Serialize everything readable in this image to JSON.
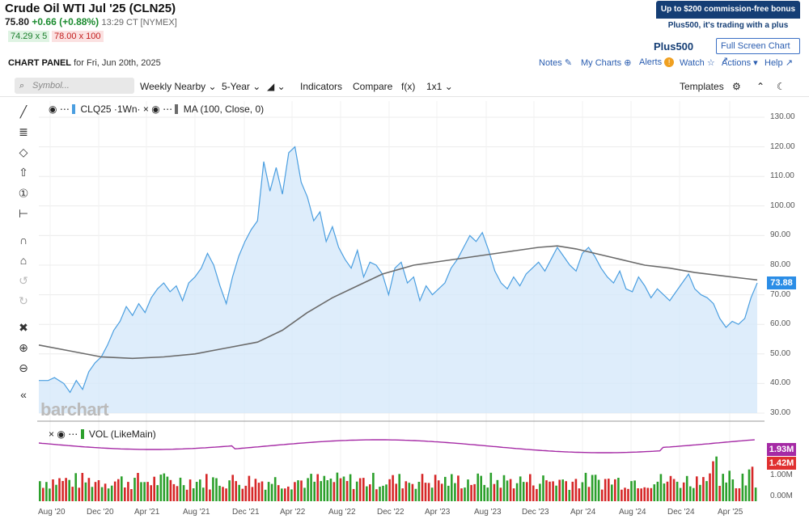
{
  "header": {
    "title": "Crude Oil WTI Jul '25 (CLN25)",
    "last": "75.80",
    "change": "+0.66 (+0.88%)",
    "time": "13:29 CT [NYMEX]",
    "bid": "74.29 x 5",
    "ask": "78.00 x 100"
  },
  "promo": {
    "line1": "Up to $200 commission-free bonus",
    "line2": "Plus500, it's trading with a plus",
    "brand": "Plus500",
    "fullscreen": "Full Screen Chart"
  },
  "panel": {
    "label": "CHART PANEL",
    "date": "for Fri, Jun 20th, 2025"
  },
  "topnav": {
    "notes": "Notes",
    "mycharts": "My Charts",
    "alerts": "Alerts",
    "watch": "Watch",
    "actions": "Actions",
    "help": "Help"
  },
  "toolbar": {
    "search_placeholder": "Symbol...",
    "nearby": "Weekly Nearby",
    "period": "5-Year",
    "indicators": "Indicators",
    "compare": "Compare",
    "fx": "f(x)",
    "layout": "1x1",
    "templates": "Templates"
  },
  "legend": {
    "main": "CLQ25 ·1Wn·",
    "ma": "MA (100, Close, 0)",
    "vol": "VOL (LikeMain)"
  },
  "watermark": "barchart",
  "tags": {
    "price": "73.88",
    "vol_ma": "1.93M",
    "vol": "1.42M"
  },
  "colors": {
    "price_line": "#4a9ee0",
    "price_fill": "#d6e8fa",
    "ma_line": "#6b6b6b",
    "vol_up": "#2ca02c",
    "vol_down": "#d62728",
    "vol_ma": "#a52aa5",
    "price_tag": "#2b8de6",
    "vol_ma_tag": "#a52aa5",
    "vol_tag": "#e03030"
  },
  "chart_data": {
    "type": "line",
    "price_axis": [
      "130.00",
      "120.00",
      "110.00",
      "100.00",
      "90.00",
      "80.00",
      "70.00",
      "60.00",
      "50.00",
      "40.00",
      "30.00"
    ],
    "volume_axis": [
      "1.00M",
      "0.00M"
    ],
    "x_labels": [
      "Aug '20",
      "Dec '20",
      "Apr '21",
      "Aug '21",
      "Dec '21",
      "Apr '22",
      "Aug '22",
      "Dec '22",
      "Apr '23",
      "Aug '23",
      "Dec '23",
      "Apr '24",
      "Aug '24",
      "Dec '24",
      "Apr '25"
    ],
    "ylim": [
      30,
      130
    ],
    "series": [
      {
        "name": "CLQ25",
        "points": [
          [
            0,
            41
          ],
          [
            3,
            41
          ],
          [
            5,
            42
          ],
          [
            8,
            40
          ],
          [
            10,
            37
          ],
          [
            12,
            41
          ],
          [
            14,
            38
          ],
          [
            16,
            44
          ],
          [
            18,
            47
          ],
          [
            20,
            49
          ],
          [
            22,
            53
          ],
          [
            24,
            58
          ],
          [
            26,
            61
          ],
          [
            28,
            66
          ],
          [
            30,
            63
          ],
          [
            32,
            67
          ],
          [
            34,
            64
          ],
          [
            36,
            69
          ],
          [
            38,
            72
          ],
          [
            40,
            74
          ],
          [
            42,
            71
          ],
          [
            44,
            73
          ],
          [
            46,
            68
          ],
          [
            48,
            74
          ],
          [
            50,
            76
          ],
          [
            52,
            79
          ],
          [
            54,
            84
          ],
          [
            56,
            80
          ],
          [
            58,
            73
          ],
          [
            60,
            67
          ],
          [
            62,
            76
          ],
          [
            64,
            83
          ],
          [
            66,
            88
          ],
          [
            68,
            92
          ],
          [
            70,
            95
          ],
          [
            72,
            115
          ],
          [
            74,
            105
          ],
          [
            76,
            113
          ],
          [
            78,
            104
          ],
          [
            80,
            118
          ],
          [
            82,
            120
          ],
          [
            84,
            108
          ],
          [
            86,
            103
          ],
          [
            88,
            95
          ],
          [
            90,
            98
          ],
          [
            92,
            88
          ],
          [
            94,
            93
          ],
          [
            96,
            86
          ],
          [
            98,
            82
          ],
          [
            100,
            79
          ],
          [
            102,
            85
          ],
          [
            104,
            76
          ],
          [
            106,
            81
          ],
          [
            108,
            80
          ],
          [
            110,
            77
          ],
          [
            112,
            70
          ],
          [
            114,
            79
          ],
          [
            116,
            81
          ],
          [
            118,
            74
          ],
          [
            120,
            76
          ],
          [
            122,
            68
          ],
          [
            124,
            73
          ],
          [
            126,
            70
          ],
          [
            128,
            72
          ],
          [
            130,
            74
          ],
          [
            132,
            79
          ],
          [
            134,
            82
          ],
          [
            136,
            86
          ],
          [
            138,
            90
          ],
          [
            140,
            88
          ],
          [
            142,
            91
          ],
          [
            144,
            85
          ],
          [
            146,
            78
          ],
          [
            148,
            74
          ],
          [
            150,
            72
          ],
          [
            152,
            76
          ],
          [
            154,
            73
          ],
          [
            156,
            77
          ],
          [
            158,
            79
          ],
          [
            160,
            81
          ],
          [
            162,
            78
          ],
          [
            164,
            82
          ],
          [
            166,
            86
          ],
          [
            168,
            83
          ],
          [
            170,
            80
          ],
          [
            172,
            78
          ],
          [
            174,
            84
          ],
          [
            176,
            86
          ],
          [
            178,
            83
          ],
          [
            180,
            79
          ],
          [
            182,
            76
          ],
          [
            184,
            74
          ],
          [
            186,
            78
          ],
          [
            188,
            72
          ],
          [
            190,
            71
          ],
          [
            192,
            76
          ],
          [
            194,
            73
          ],
          [
            196,
            69
          ],
          [
            198,
            72
          ],
          [
            200,
            70
          ],
          [
            202,
            68
          ],
          [
            204,
            71
          ],
          [
            206,
            74
          ],
          [
            208,
            77
          ],
          [
            210,
            72
          ],
          [
            212,
            70
          ],
          [
            214,
            69
          ],
          [
            216,
            67
          ],
          [
            218,
            62
          ],
          [
            220,
            59
          ],
          [
            222,
            61
          ],
          [
            224,
            60
          ],
          [
            226,
            62
          ],
          [
            228,
            69
          ],
          [
            230,
            74
          ]
        ]
      },
      {
        "name": "MA (100, Close, 0)",
        "points": [
          [
            0,
            53
          ],
          [
            10,
            51
          ],
          [
            20,
            49
          ],
          [
            30,
            48.5
          ],
          [
            40,
            49
          ],
          [
            50,
            50
          ],
          [
            60,
            52
          ],
          [
            70,
            54
          ],
          [
            78,
            58
          ],
          [
            86,
            64
          ],
          [
            94,
            69
          ],
          [
            102,
            73
          ],
          [
            110,
            77
          ],
          [
            120,
            80
          ],
          [
            130,
            81.5
          ],
          [
            140,
            83
          ],
          [
            150,
            84.5
          ],
          [
            160,
            86
          ],
          [
            166,
            86.5
          ],
          [
            172,
            85.5
          ],
          [
            178,
            84
          ],
          [
            186,
            82
          ],
          [
            194,
            80
          ],
          [
            202,
            79
          ],
          [
            210,
            77.5
          ],
          [
            218,
            76.5
          ],
          [
            226,
            75.5
          ],
          [
            230,
            75
          ]
        ]
      }
    ],
    "volume_bars": "see script",
    "xlim": [
      0,
      230
    ]
  }
}
